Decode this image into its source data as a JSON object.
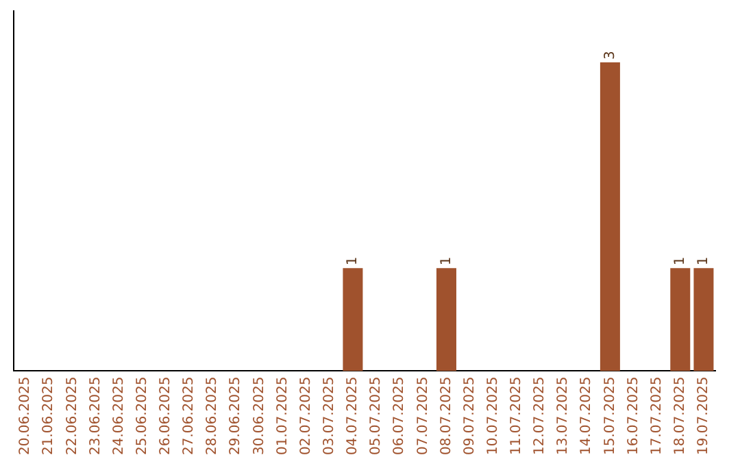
{
  "chart_data": {
    "type": "bar",
    "categories": [
      "20.06.2025",
      "21.06.2025",
      "22.06.2025",
      "23.06.2025",
      "24.06.2025",
      "25.06.2025",
      "26.06.2025",
      "27.06.2025",
      "28.06.2025",
      "29.06.2025",
      "30.06.2025",
      "01.07.2025",
      "02.07.2025",
      "03.07.2025",
      "04.07.2025",
      "05.07.2025",
      "06.07.2025",
      "07.07.2025",
      "08.07.2025",
      "09.07.2025",
      "10.07.2025",
      "11.07.2025",
      "12.07.2025",
      "13.07.2025",
      "14.07.2025",
      "15.07.2025",
      "16.07.2025",
      "17.07.2025",
      "18.07.2025",
      "19.07.2025"
    ],
    "values": [
      null,
      null,
      null,
      null,
      null,
      null,
      null,
      null,
      null,
      null,
      null,
      null,
      null,
      null,
      1,
      null,
      null,
      null,
      1,
      null,
      null,
      null,
      null,
      null,
      null,
      3,
      null,
      null,
      1,
      1
    ],
    "data_labels": true,
    "color": "#a0522d",
    "grid": false,
    "legend": false,
    "tick_labels": "x"
  }
}
